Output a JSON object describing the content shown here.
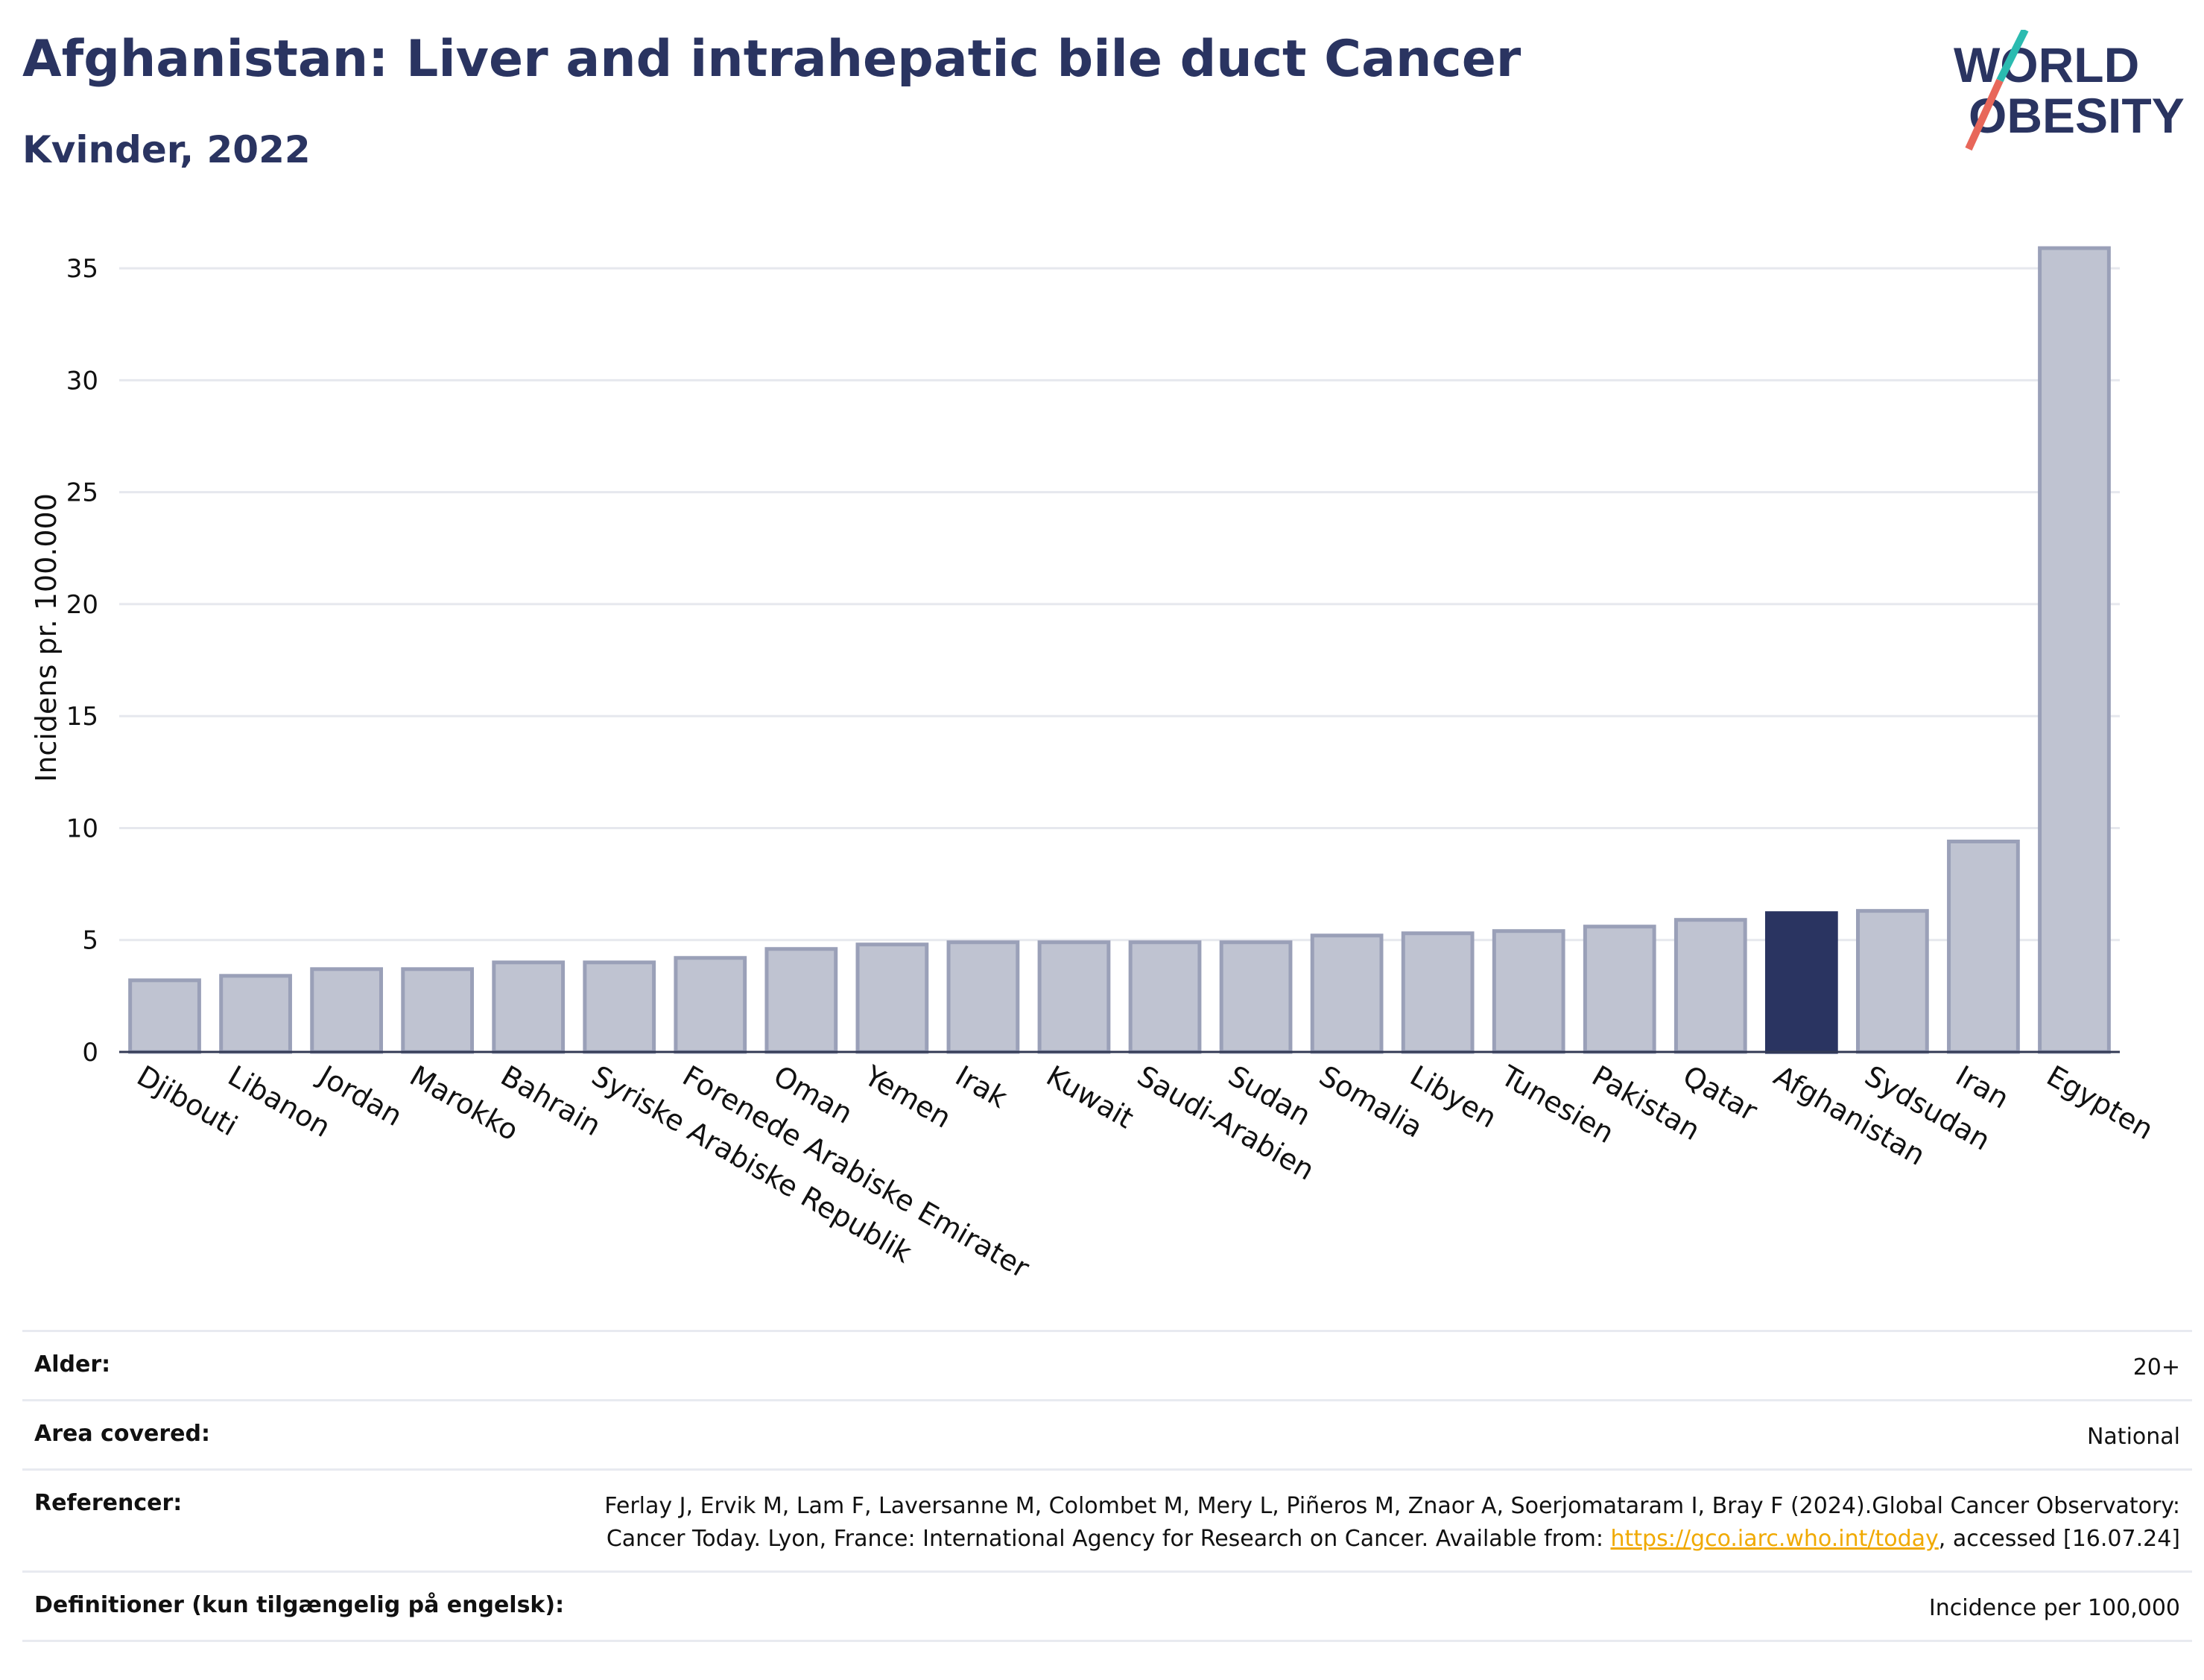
{
  "header": {
    "title": "Afghanistan: Liver and intrahepatic bile duct Cancer",
    "subtitle": "Kvinder, 2022"
  },
  "logo": {
    "line1": "WORLD",
    "line2": "OBESITY",
    "accent_teal": "#2bbbb0",
    "accent_coral": "#e8675a"
  },
  "chart_data": {
    "type": "bar",
    "ylabel": "Incidens pr. 100.000",
    "ylim": [
      0,
      37
    ],
    "yticks": [
      0,
      5,
      10,
      15,
      20,
      25,
      30,
      35
    ],
    "grid": true,
    "highlight": "Afghanistan",
    "colors": {
      "bar": "#bfc3d1",
      "bar_border": "#9aa0b8",
      "highlight": "#2a3461"
    },
    "categories": [
      "Djibouti",
      "Libanon",
      "Jordan",
      "Marokko",
      "Bahrain",
      "Syriske Arabiske Republik",
      "Forenede Arabiske Emirater",
      "Oman",
      "Yemen",
      "Irak",
      "Kuwait",
      "Saudi-Arabien",
      "Sudan",
      "Somalia",
      "Libyen",
      "Tunesien",
      "Pakistan",
      "Qatar",
      "Afghanistan",
      "Sydsudan",
      "Iran",
      "Egypten"
    ],
    "values": [
      3.2,
      3.4,
      3.7,
      3.7,
      4.0,
      4.0,
      4.2,
      4.6,
      4.8,
      4.9,
      4.9,
      4.9,
      4.9,
      5.2,
      5.3,
      5.4,
      5.6,
      5.9,
      6.2,
      6.3,
      9.4,
      35.9
    ]
  },
  "info": {
    "rows": [
      {
        "label": "Alder:",
        "value": "20+"
      },
      {
        "label": "Area covered:",
        "value": "National"
      },
      {
        "label": "Referencer:",
        "value_pre": "Ferlay J, Ervik M, Lam F, Laversanne M, Colombet M, Mery L, Piñeros M, Znaor A, Soerjomataram I, Bray F (2024).Global Cancer Observatory: Cancer Today. Lyon, France: International Agency for Research on Cancer. Available from: ",
        "link": "https://gco.iarc.who.int/today",
        "value_post": ", accessed [16.07.24]"
      },
      {
        "label": "Definitioner (kun tilgængelig på engelsk):",
        "value": "Incidence per 100,000"
      }
    ]
  }
}
